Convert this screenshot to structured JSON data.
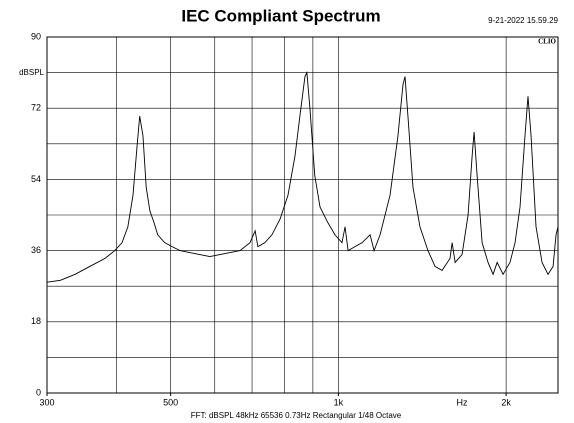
{
  "chart_data": {
    "type": "line",
    "title": "IEC Compliant Spectrum",
    "subtitle": "9-21-2022 15.59.29",
    "brand": "CLIO",
    "ylabel": "dBSPL",
    "xlabel": "Hz",
    "footer": "FFT:  dBSPL  48kHz  65536  0.73Hz  Rectangular  1/48 Octave",
    "log_x": true,
    "grid": true,
    "color": "#000000",
    "xlim": [
      300,
      2478
    ],
    "ylim": [
      0,
      90
    ],
    "xticks": [
      300,
      500,
      {
        "value": 1000,
        "label": "1k"
      },
      {
        "value": 2000,
        "label": "2k"
      }
    ],
    "xgrid": [
      400,
      500,
      600,
      700,
      800,
      900,
      1000,
      2000
    ],
    "yticks": [
      0,
      18,
      36,
      54,
      72,
      90
    ],
    "ygrid": [
      9,
      27,
      45,
      63,
      81
    ],
    "x": [
      300,
      317,
      337,
      358,
      381,
      397,
      409,
      419,
      428,
      435,
      440,
      446,
      452,
      459,
      467,
      474,
      488,
      503,
      520,
      541,
      564,
      588,
      613,
      639,
      666,
      694,
      709,
      717,
      738,
      760,
      786,
      812,
      836,
      853,
      871,
      878,
      889,
      907,
      927,
      958,
      986,
      1015,
      1028,
      1041,
      1071,
      1103,
      1140,
      1159,
      1188,
      1238,
      1279,
      1306,
      1317,
      1333,
      1361,
      1401,
      1448,
      1491,
      1535,
      1586,
      1600,
      1620,
      1667,
      1709,
      1738,
      1752,
      1774,
      1811,
      1856,
      1895,
      1927,
      1975,
      2032,
      2075,
      2118,
      2162,
      2189,
      2217,
      2263,
      2320,
      2378,
      2428,
      2458,
      2478
    ],
    "values": [
      28,
      28.5,
      30,
      32,
      34,
      36,
      38,
      42,
      50,
      62,
      70,
      65,
      52,
      46,
      43,
      40,
      38,
      37,
      36,
      35.5,
      35,
      34.5,
      35,
      35.5,
      36,
      38,
      41,
      37,
      38,
      40,
      44,
      50,
      60,
      70,
      80,
      81,
      72,
      55,
      47,
      43,
      40,
      38,
      42,
      36,
      37,
      38,
      40,
      36,
      40,
      50,
      65,
      78,
      80,
      70,
      52,
      42,
      36,
      32,
      31,
      34,
      38,
      33,
      35,
      45,
      60,
      66,
      55,
      38,
      33,
      30,
      33,
      30,
      33,
      38,
      47,
      65,
      75,
      65,
      42,
      33,
      30,
      32,
      40,
      42
    ]
  }
}
